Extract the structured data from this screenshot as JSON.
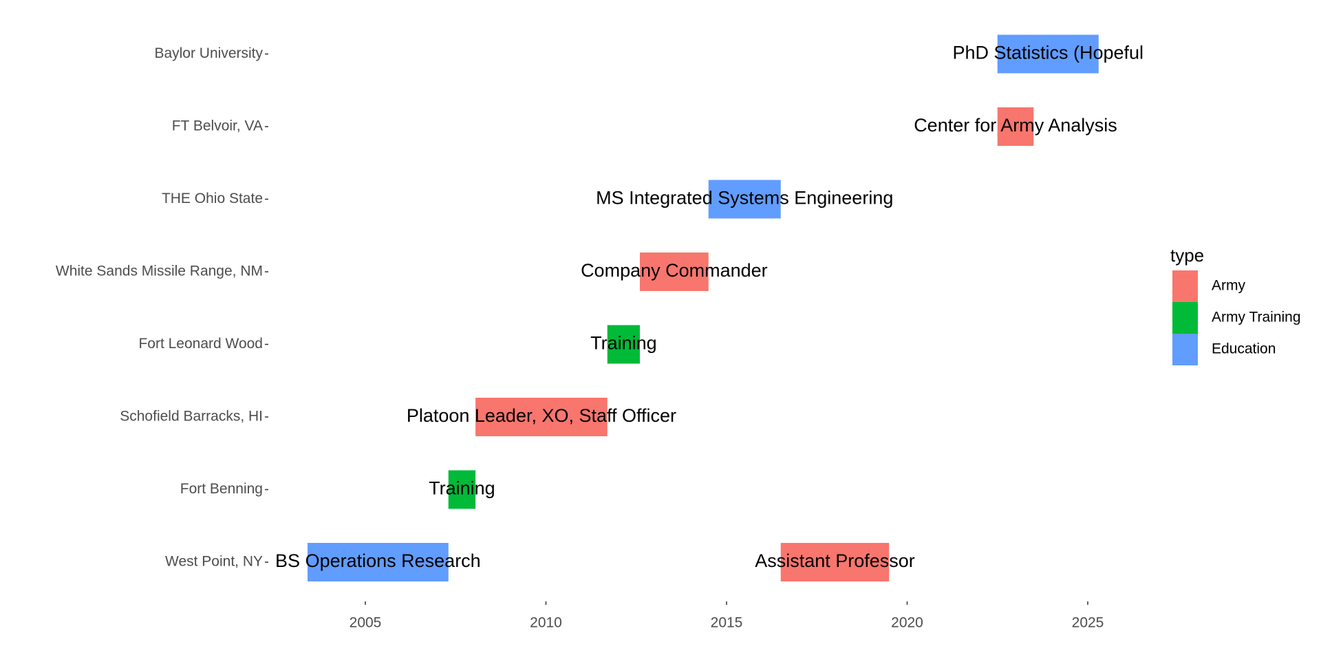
{
  "chart_data": {
    "type": "bar",
    "subtype": "timeline",
    "title": "",
    "xlabel": "",
    "ylabel": "",
    "xlim": [
      2001.5,
      2030.5
    ],
    "x_ticks": [
      2005,
      2010,
      2015,
      2020,
      2025
    ],
    "grid": false,
    "legend": {
      "title": "type",
      "position": "right",
      "entries": [
        {
          "name": "Army",
          "color": "#F8766D"
        },
        {
          "name": "Army Training",
          "color": "#00BA38"
        },
        {
          "name": "Education",
          "color": "#619CFF"
        }
      ]
    },
    "categories": [
      "West Point, NY",
      "Fort Benning",
      "Schofield Barracks, HI",
      "Fort Leonard Wood",
      "White Sands Missile Range, NM",
      "THE Ohio State",
      "FT Belvoir, VA",
      "Baylor University"
    ],
    "segments": [
      {
        "label": "BS Operations Research",
        "location": "West Point, NY",
        "type": "Education",
        "start": 2003.4,
        "end": 2007.3
      },
      {
        "label": "Assistant Professor",
        "location": "West Point, NY",
        "type": "Army",
        "start": 2016.5,
        "end": 2019.5
      },
      {
        "label": "Training",
        "location": "Fort Benning",
        "type": "Army Training",
        "start": 2007.3,
        "end": 2008.05
      },
      {
        "label": "Platoon Leader, XO, Staff Officer",
        "location": "Schofield Barracks, HI",
        "type": "Army",
        "start": 2008.05,
        "end": 2011.7
      },
      {
        "label": "Training",
        "location": "Fort Leonard Wood",
        "type": "Army Training",
        "start": 2011.7,
        "end": 2012.6
      },
      {
        "label": "Company Commander",
        "location": "White Sands Missile Range, NM",
        "type": "Army",
        "start": 2012.6,
        "end": 2014.5
      },
      {
        "label": "MS Integrated Systems Engineering",
        "location": "THE Ohio State",
        "type": "Education",
        "start": 2014.5,
        "end": 2016.5
      },
      {
        "label": "Center for Army Analysis",
        "location": "FT Belvoir, VA",
        "type": "Army",
        "start": 2022.5,
        "end": 2023.5
      },
      {
        "label": "PhD Statistics (Hopeful",
        "location": "Baylor University",
        "type": "Education",
        "start": 2022.5,
        "end": 2025.3
      }
    ]
  }
}
